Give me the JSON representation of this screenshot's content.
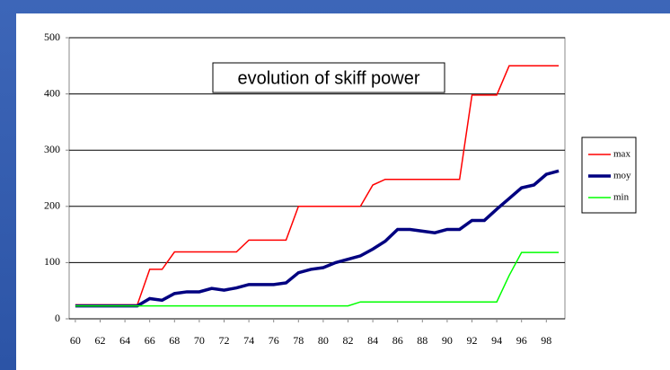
{
  "chart_data": {
    "type": "line",
    "title": "evolution of skiff power",
    "x": [
      60,
      61,
      62,
      63,
      64,
      65,
      66,
      67,
      68,
      69,
      70,
      71,
      72,
      73,
      74,
      75,
      76,
      77,
      78,
      79,
      80,
      81,
      82,
      83,
      84,
      85,
      86,
      87,
      88,
      89,
      90,
      91,
      92,
      93,
      94,
      95,
      96,
      97,
      98,
      99
    ],
    "xlim": [
      59.5,
      99.5
    ],
    "xticks": [
      60,
      62,
      64,
      66,
      68,
      70,
      72,
      74,
      76,
      78,
      80,
      82,
      84,
      86,
      88,
      90,
      92,
      94,
      96,
      98
    ],
    "ylim": [
      0,
      500
    ],
    "yticks": [
      0,
      100,
      200,
      300,
      400,
      500
    ],
    "grid": true,
    "legend": "right",
    "series": [
      {
        "name": "max",
        "color": "#ff0000",
        "width": 1.5,
        "values": [
          25,
          25,
          25,
          25,
          25,
          25,
          88,
          88,
          119,
          119,
          119,
          119,
          119,
          119,
          140,
          140,
          140,
          140,
          200,
          200,
          200,
          200,
          200,
          200,
          238,
          248,
          248,
          248,
          248,
          248,
          248,
          248,
          398,
          398,
          398,
          450,
          450,
          450,
          450,
          450
        ]
      },
      {
        "name": "moy",
        "color": "#000080",
        "width": 3.5,
        "values": [
          23,
          23,
          23,
          23,
          23,
          23,
          36,
          33,
          45,
          48,
          48,
          54,
          51,
          55,
          61,
          61,
          61,
          64,
          82,
          88,
          91,
          100,
          106,
          112,
          124,
          138,
          159,
          159,
          156,
          153,
          159,
          159,
          175,
          175,
          195,
          214,
          233,
          238,
          257,
          263
        ]
      },
      {
        "name": "min",
        "color": "#00ff00",
        "width": 1.5,
        "values": [
          23,
          23,
          23,
          23,
          23,
          23,
          23,
          23,
          23,
          23,
          23,
          23,
          23,
          23,
          23,
          23,
          23,
          23,
          23,
          23,
          23,
          23,
          23,
          30,
          30,
          30,
          30,
          30,
          30,
          30,
          30,
          30,
          30,
          30,
          30,
          77,
          118,
          118,
          118,
          118
        ]
      }
    ]
  }
}
